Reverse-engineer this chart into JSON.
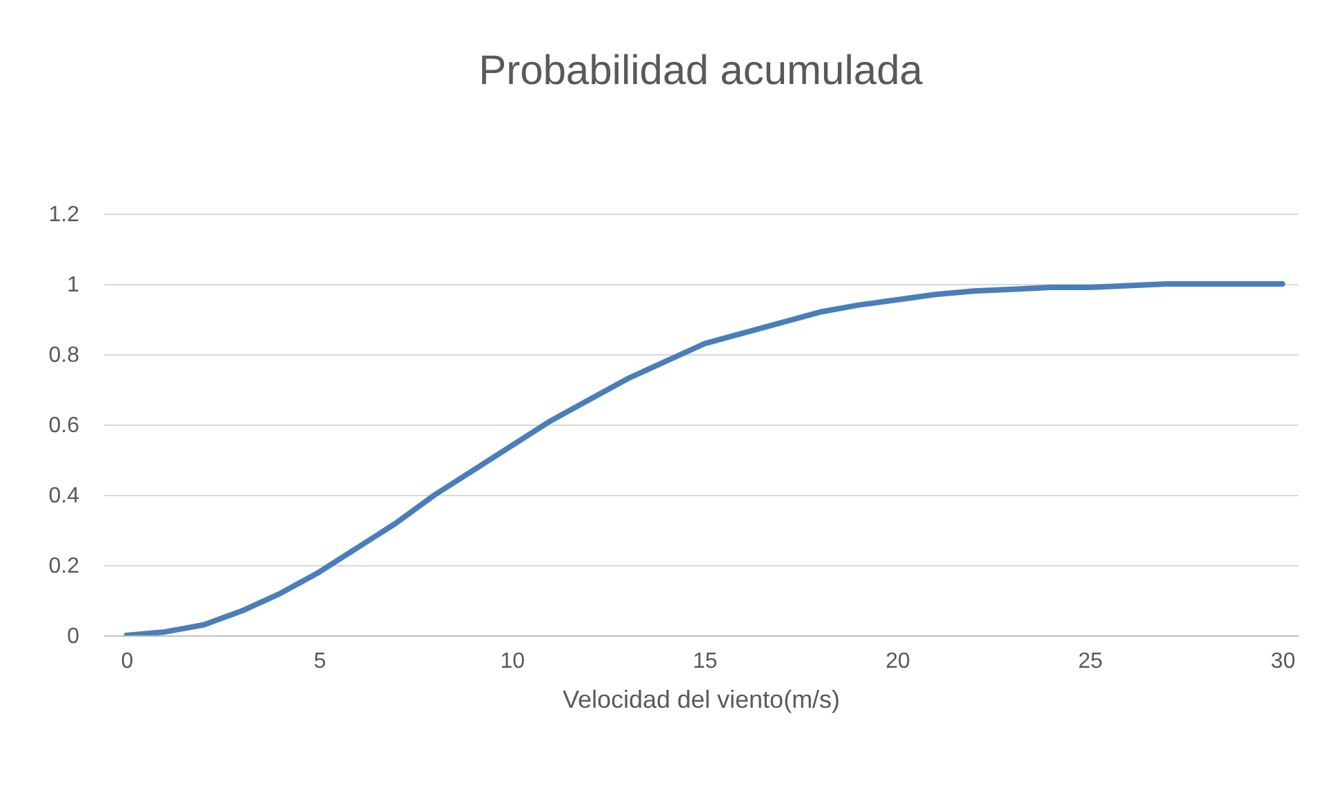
{
  "chart_data": {
    "type": "line",
    "title": "Probabilidad acumulada",
    "xlabel": "Velocidad del viento(m/s)",
    "x": [
      0,
      1,
      2,
      3,
      4,
      5,
      6,
      7,
      8,
      9,
      10,
      11,
      12,
      13,
      14,
      15,
      16,
      17,
      18,
      19,
      20,
      21,
      22,
      23,
      24,
      25,
      26,
      27,
      28,
      29,
      30
    ],
    "series": [
      {
        "color": "#4a7ebb",
        "values": [
          0,
          0.01,
          0.03,
          0.07,
          0.12,
          0.18,
          0.25,
          0.32,
          0.4,
          0.47,
          0.54,
          0.61,
          0.67,
          0.73,
          0.78,
          0.83,
          0.86,
          0.89,
          0.92,
          0.94,
          0.955,
          0.97,
          0.98,
          0.985,
          0.99,
          0.99,
          0.995,
          1,
          1,
          1,
          1
        ]
      }
    ],
    "xlim": [
      -0.6,
      30.4
    ],
    "xticks": [
      0,
      5,
      10,
      15,
      20,
      25,
      30
    ],
    "ylim": [
      0,
      1.2
    ],
    "yticks": [
      0,
      0.2,
      0.4,
      0.6,
      0.8,
      1,
      1.2
    ],
    "grid": "y"
  }
}
